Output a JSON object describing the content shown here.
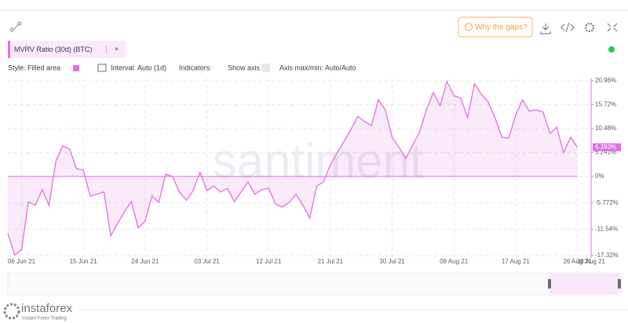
{
  "toolbar": {
    "gaps_button": "Why the gaps?"
  },
  "metric": {
    "name": "MVRV Ratio (30d) (BTC)"
  },
  "controls": {
    "style": "Style: Filled area",
    "interval": "Interval: Auto (1d)",
    "indicators": "Indicators:",
    "show_axis": "Show axis",
    "axis_minmax": "Axis max/min: Auto/Auto"
  },
  "watermark": "santiment",
  "branding": {
    "logo": "instaforex",
    "tagline": "Instant Forex Trading"
  },
  "chart_data": {
    "type": "area",
    "color": "#e06fe0",
    "grid": true,
    "x": [
      "2021-06-04",
      "2021-06-05",
      "2021-06-06",
      "2021-06-07",
      "2021-06-08",
      "2021-06-09",
      "2021-06-10",
      "2021-06-11",
      "2021-06-12",
      "2021-06-13",
      "2021-06-14",
      "2021-06-15",
      "2021-06-16",
      "2021-06-17",
      "2021-06-18",
      "2021-06-19",
      "2021-06-20",
      "2021-06-21",
      "2021-06-22",
      "2021-06-23",
      "2021-06-24",
      "2021-06-25",
      "2021-06-26",
      "2021-06-27",
      "2021-06-28",
      "2021-06-29",
      "2021-06-30",
      "2021-07-01",
      "2021-07-02",
      "2021-07-03",
      "2021-07-04",
      "2021-07-05",
      "2021-07-06",
      "2021-07-07",
      "2021-07-08",
      "2021-07-09",
      "2021-07-10",
      "2021-07-11",
      "2021-07-12",
      "2021-07-13",
      "2021-07-14",
      "2021-07-15",
      "2021-07-16",
      "2021-07-17",
      "2021-07-18",
      "2021-07-19",
      "2021-07-20",
      "2021-07-21",
      "2021-07-22",
      "2021-07-23",
      "2021-07-24",
      "2021-07-25",
      "2021-07-26",
      "2021-07-27",
      "2021-07-28",
      "2021-07-29",
      "2021-07-30",
      "2021-07-31",
      "2021-08-01",
      "2021-08-02",
      "2021-08-03",
      "2021-08-04",
      "2021-08-05",
      "2021-08-06",
      "2021-08-07",
      "2021-08-08",
      "2021-08-09",
      "2021-08-10",
      "2021-08-11",
      "2021-08-12",
      "2021-08-13",
      "2021-08-14",
      "2021-08-15",
      "2021-08-16",
      "2021-08-17",
      "2021-08-18",
      "2021-08-19",
      "2021-08-20",
      "2021-08-21",
      "2021-08-22",
      "2021-08-23",
      "2021-08-24",
      "2021-08-25",
      "2021-08-26"
    ],
    "values": [
      -12.5,
      -17.2,
      -16.0,
      -5.6,
      -6.3,
      -2.9,
      -6.3,
      3.4,
      6.7,
      6.0,
      1.7,
      1.4,
      -4.3,
      -3.9,
      -3.4,
      -13.0,
      -10.3,
      -7.7,
      -5.5,
      -11.3,
      -9.8,
      -4.3,
      -5.7,
      0.5,
      0,
      -3.4,
      -5.2,
      -3.1,
      0.9,
      -3.1,
      -2.1,
      -3.4,
      -2.6,
      -5.5,
      -3.4,
      -1.2,
      -3.9,
      -2.9,
      -2.6,
      -6.0,
      -6.7,
      -5.7,
      -3.9,
      -6.3,
      -9.1,
      -2.1,
      -1.2,
      2.6,
      5.2,
      7.7,
      10.3,
      13.2,
      12.0,
      11.2,
      16.8,
      14.6,
      8.6,
      6.4,
      4.0,
      6.9,
      9.8,
      14.6,
      18.4,
      15.5,
      20.8,
      17.7,
      17.2,
      12.9,
      20.3,
      18.0,
      16.3,
      12.9,
      8.6,
      8.4,
      13.4,
      16.8,
      14.3,
      14.6,
      14.1,
      9.4,
      10.8,
      5.2,
      8.6,
      6.393
    ],
    "value_labels": [
      null,
      null,
      null,
      null,
      null,
      null,
      null,
      null,
      null,
      null,
      null,
      null,
      null,
      null,
      null,
      null,
      null,
      null,
      null,
      null,
      null,
      null,
      null,
      null,
      null,
      null,
      null,
      null,
      null,
      null,
      null,
      null,
      null,
      null,
      null,
      null,
      null,
      null,
      null,
      null,
      null,
      null,
      null,
      null,
      null,
      null,
      null,
      null,
      null,
      null,
      null,
      null,
      null,
      null,
      null,
      null,
      null,
      null,
      null,
      null,
      null,
      null,
      null,
      null,
      null,
      null,
      null,
      null,
      null,
      null,
      null,
      null,
      null,
      null,
      null,
      null,
      null,
      null,
      null,
      null,
      null,
      null,
      null,
      "6.393%"
    ],
    "xlim": [
      "2021-06-04",
      "2021-08-28"
    ],
    "xticks": [
      {
        "value": "2021-06-06",
        "label": "06 Jun 21"
      },
      {
        "value": "2021-06-15",
        "label": "15 Jun 21"
      },
      {
        "value": "2021-06-24",
        "label": "24 Jun 21"
      },
      {
        "value": "2021-07-03",
        "label": "03 Jul 21"
      },
      {
        "value": "2021-07-12",
        "label": "12 Jul 21"
      },
      {
        "value": "2021-07-21",
        "label": "21 Jul 21"
      },
      {
        "value": "2021-07-30",
        "label": "30 Jul 21"
      },
      {
        "value": "2021-08-08",
        "label": "08 Aug 21"
      },
      {
        "value": "2021-08-17",
        "label": "17 Aug 21"
      },
      {
        "value": "2021-08-26",
        "label": "26 Aug 21"
      },
      {
        "value": "2021-08-28",
        "label": "28 Aug 21"
      }
    ],
    "ylim": [
      -17.32,
      20.96
    ],
    "yticks": [
      {
        "value": 20.96,
        "label": "20.96%"
      },
      {
        "value": 15.72,
        "label": "15.72%"
      },
      {
        "value": 10.48,
        "label": "10.48%"
      },
      {
        "value": 5.241,
        "label": "5.241%"
      },
      {
        "value": 0,
        "label": "0%"
      },
      {
        "value": -5.772,
        "label": "-5.772%"
      },
      {
        "value": -11.54,
        "label": "-11.54%"
      },
      {
        "value": -17.32,
        "label": "-17.32%"
      }
    ]
  }
}
